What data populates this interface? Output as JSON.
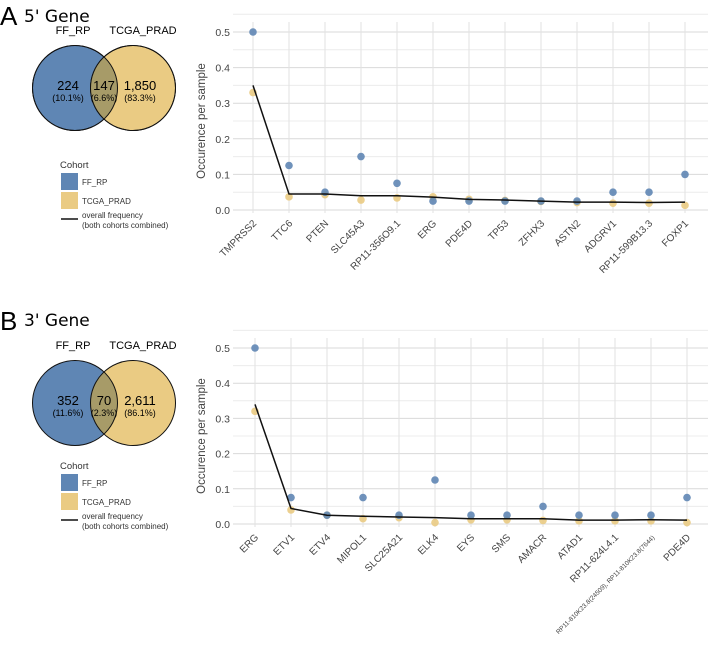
{
  "colors": {
    "ff_rp": "#5f86b4",
    "tcga_prad": "#eacb83",
    "overlap": "#a79b68",
    "line": "#111111"
  },
  "panels": [
    {
      "letter": "A",
      "title": "5' Gene",
      "venn": {
        "left_label": "FF_RP",
        "right_label": "TCGA_PRAD",
        "left_count": "224",
        "left_pct": "(10.1%)",
        "mid_count": "147",
        "mid_pct": "(6.6%)",
        "right_count": "1,850",
        "right_pct": "(83.3%)"
      },
      "legend": {
        "title": "Cohort",
        "items": [
          "FF_RP",
          "TCGA_PRAD"
        ],
        "line_label": "overall frequency",
        "line_sub": "(both cohorts combined)"
      }
    },
    {
      "letter": "B",
      "title": "3' Gene",
      "venn": {
        "left_label": "FF_RP",
        "right_label": "TCGA_PRAD",
        "left_count": "352",
        "left_pct": "(11.6%)",
        "mid_count": "70",
        "mid_pct": "(2.3%)",
        "right_count": "2,611",
        "right_pct": "(86.1%)"
      },
      "legend": {
        "title": "Cohort",
        "items": [
          "FF_RP",
          "TCGA_PRAD"
        ],
        "line_label": "overall frequency",
        "line_sub": "(both cohorts combined)"
      }
    }
  ],
  "chart_data": [
    {
      "type": "scatter",
      "title": "5' Gene",
      "xlabel": "",
      "ylabel": "Occurence per sample",
      "ylim": [
        0,
        0.5
      ],
      "yticks": [
        "0.0",
        "0.1",
        "0.2",
        "0.3",
        "0.4",
        "0.5"
      ],
      "grid": true,
      "categories": [
        "TMPRSS2",
        "TTC6",
        "PTEN",
        "SLC45A3",
        "RP11-356O9.1",
        "ERG",
        "PDE4D",
        "TP53",
        "ZFHX3",
        "ASTN2",
        "ADGRV1",
        "RP11-599B13.3",
        "FOXP1"
      ],
      "series": [
        {
          "name": "FF_RP",
          "type": "scatter",
          "values": [
            0.5,
            0.125,
            0.05,
            0.15,
            0.075,
            0.025,
            0.025,
            0.025,
            0.025,
            0.025,
            0.05,
            0.05,
            0.1
          ]
        },
        {
          "name": "TCGA_PRAD",
          "type": "scatter",
          "values": [
            0.33,
            0.037,
            0.043,
            0.028,
            0.034,
            0.037,
            0.03,
            0.027,
            0.024,
            0.021,
            0.019,
            0.019,
            0.013
          ]
        },
        {
          "name": "overall frequency (both cohorts combined)",
          "type": "line",
          "values": [
            0.35,
            0.045,
            0.045,
            0.04,
            0.04,
            0.036,
            0.03,
            0.028,
            0.025,
            0.022,
            0.022,
            0.021,
            0.022
          ]
        }
      ]
    },
    {
      "type": "scatter",
      "title": "3' Gene",
      "xlabel": "",
      "ylabel": "Occurence per sample",
      "ylim": [
        0,
        0.5
      ],
      "yticks": [
        "0.0",
        "0.1",
        "0.2",
        "0.3",
        "0.4",
        "0.5"
      ],
      "grid": true,
      "categories": [
        "ERG",
        "ETV1",
        "ETV4",
        "MIPOL1",
        "SLC25A21",
        "ELK4",
        "EYS",
        "SMS",
        "AMACR",
        "ATAD1",
        "RP11-624L4.1",
        "RP11-810K23.8(24509), RP11-810K23.8(7644)",
        "PDE4D"
      ],
      "series": [
        {
          "name": "FF_RP",
          "type": "scatter",
          "values": [
            0.5,
            0.075,
            0.025,
            0.075,
            0.025,
            0.125,
            0.025,
            0.025,
            0.05,
            0.025,
            0.025,
            0.025,
            0.075
          ]
        },
        {
          "name": "TCGA_PRAD",
          "type": "scatter",
          "values": [
            0.32,
            0.04,
            0.025,
            0.015,
            0.018,
            0.004,
            0.012,
            0.012,
            0.01,
            0.009,
            0.009,
            0.009,
            0.004
          ]
        },
        {
          "name": "overall frequency (both cohorts combined)",
          "type": "line",
          "values": [
            0.34,
            0.044,
            0.025,
            0.022,
            0.02,
            0.018,
            0.015,
            0.015,
            0.015,
            0.011,
            0.011,
            0.012,
            0.011
          ]
        }
      ]
    }
  ]
}
